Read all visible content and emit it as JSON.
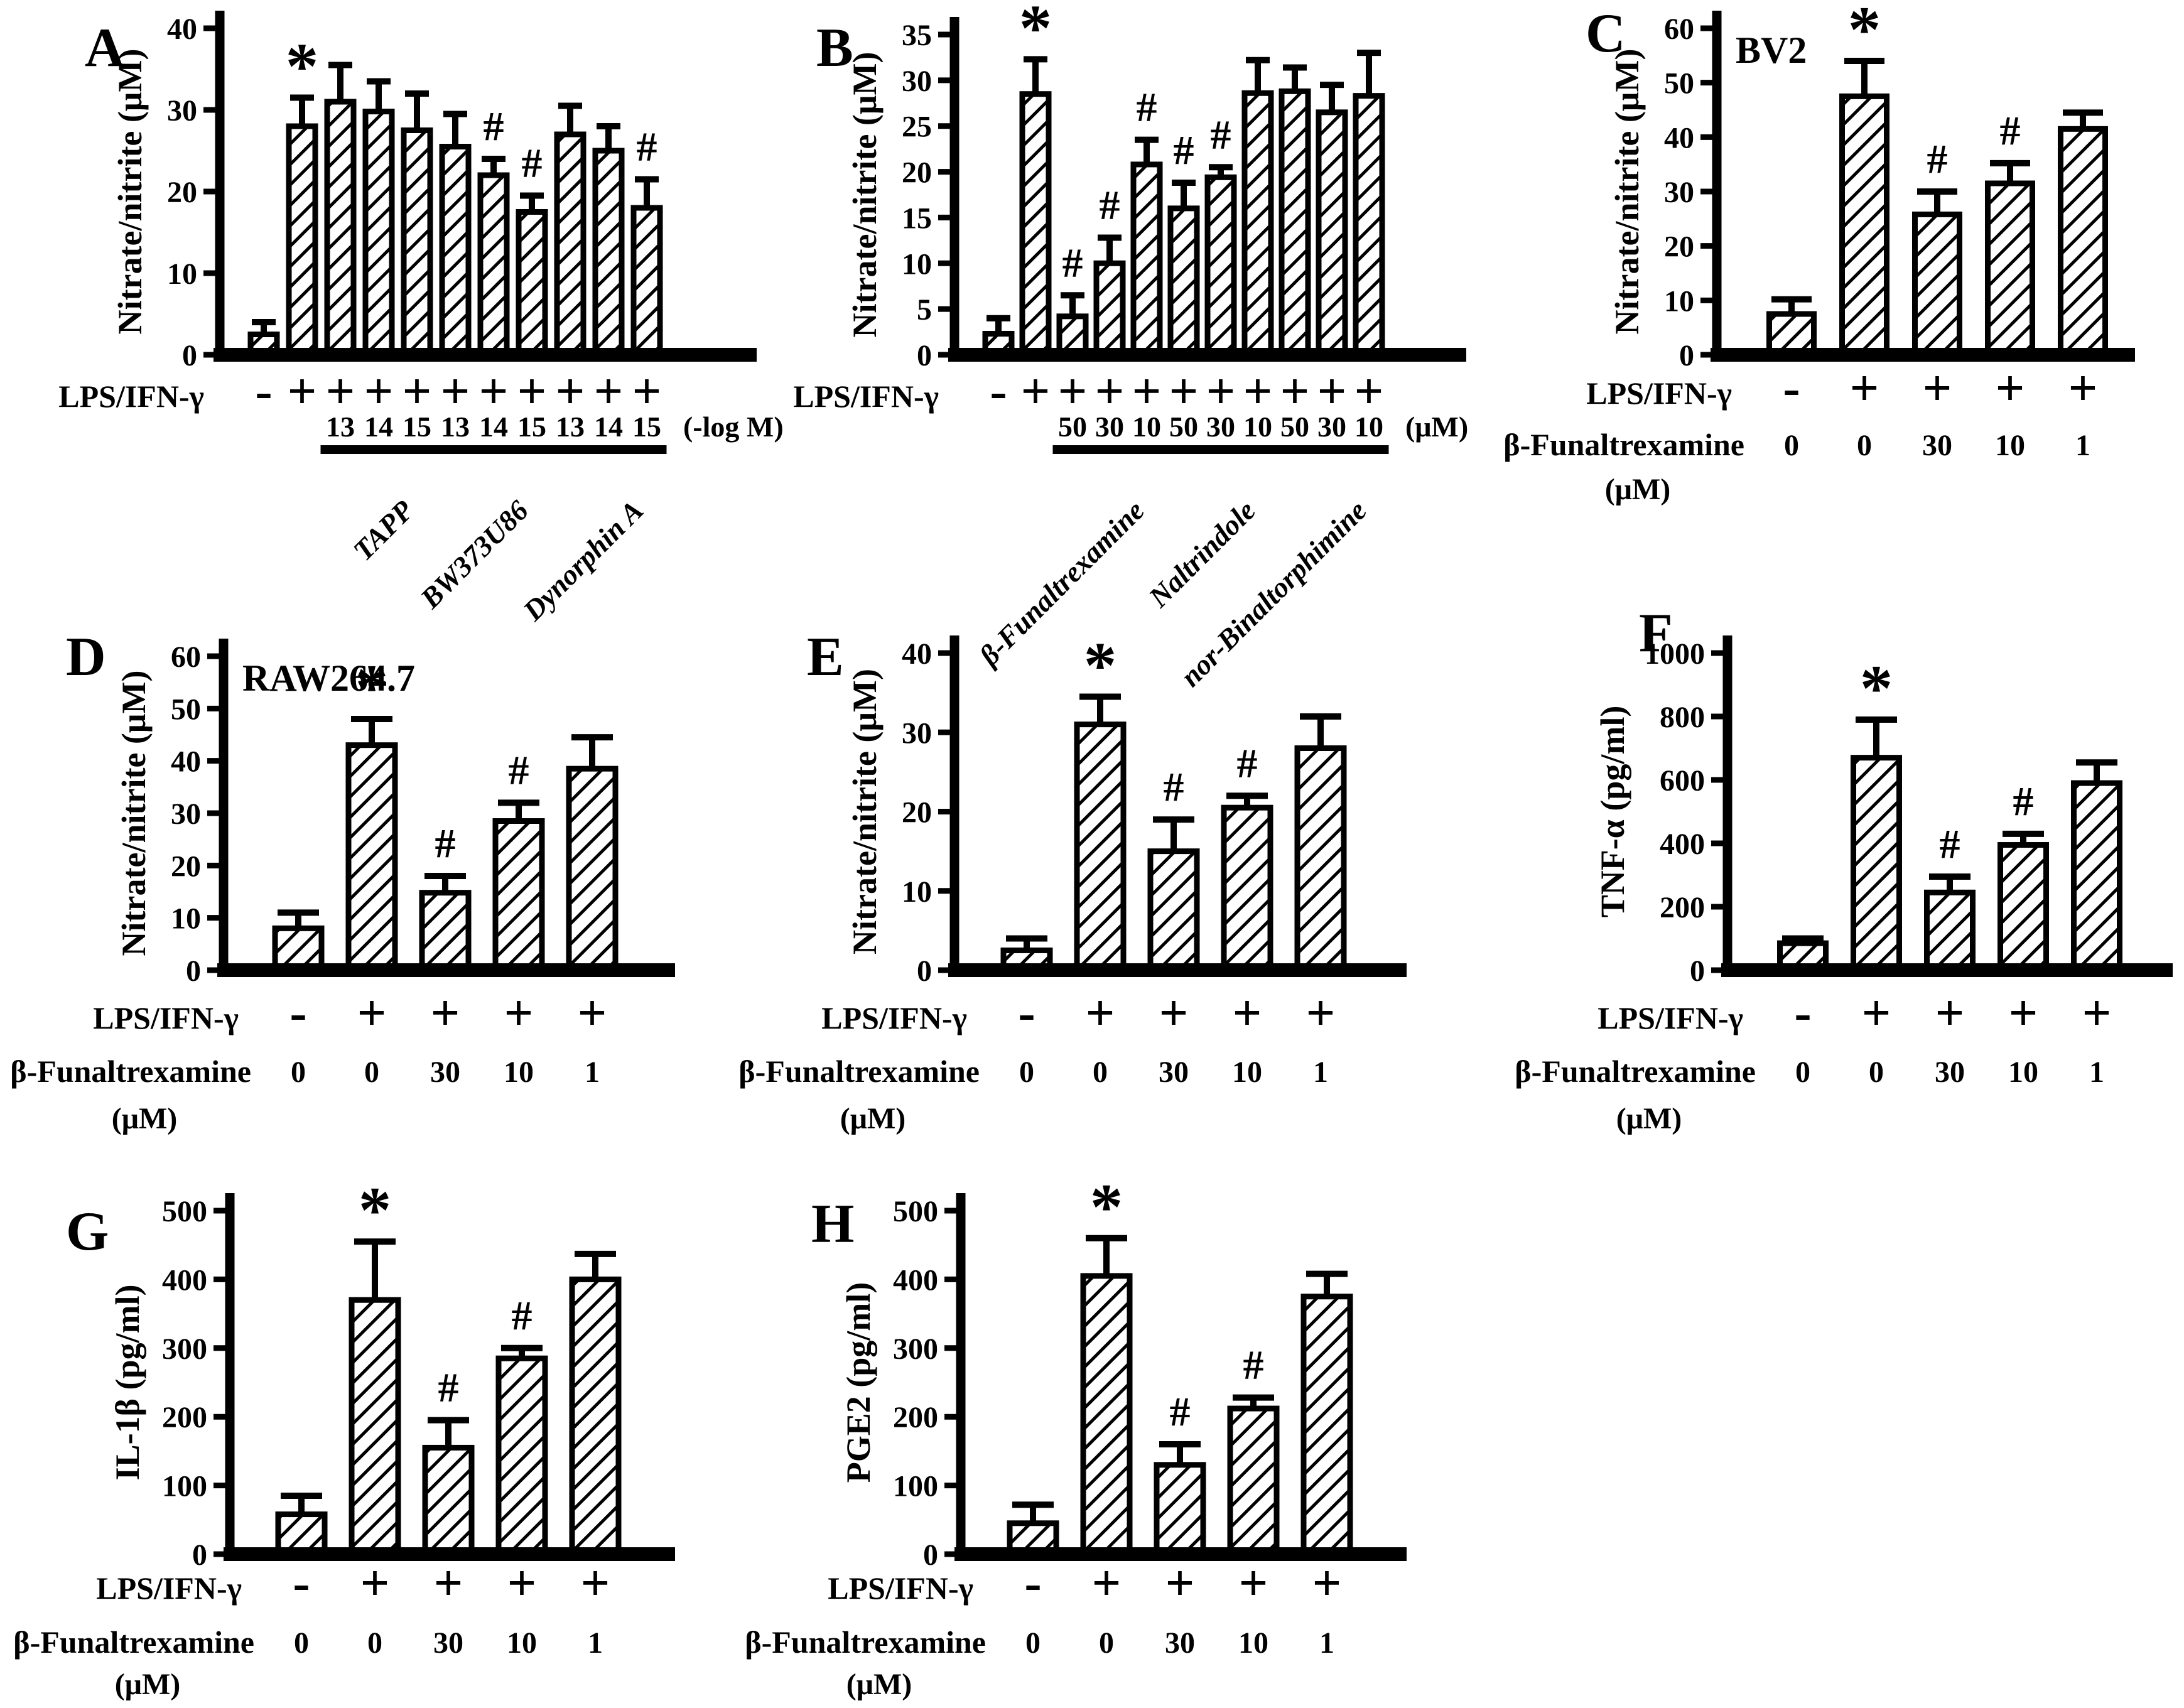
{
  "figure": {
    "background_color": "#ffffff",
    "ink_color": "#000000",
    "description": "Eight-panel bar figure (A-H) of opioid ligand effects on LPS/IFN-gamma induced inflammatory mediators"
  },
  "chart_data": [
    {
      "type": "bar",
      "panel": "A",
      "cell_line": "",
      "ylabel": "Nitrate/nitrite (μM)",
      "ylim": [
        0,
        40
      ],
      "yticks": [
        "0",
        "10",
        "20",
        "30",
        "40"
      ],
      "stim_label": "LPS/IFN-γ",
      "conc_unit": "(-log M)",
      "drug_label": "",
      "drug_unit": "",
      "grid": false,
      "legend": "none",
      "bars": [
        {
          "stim": "-",
          "conc": "",
          "value": 2.5,
          "err": 1.5,
          "sig": ""
        },
        {
          "stim": "+",
          "conc": "",
          "value": 28,
          "err": 3.5,
          "sig": "*"
        },
        {
          "stim": "+",
          "conc": "13",
          "value": 31,
          "err": 4.5,
          "sig": ""
        },
        {
          "stim": "+",
          "conc": "14",
          "value": 29.8,
          "err": 3.7,
          "sig": ""
        },
        {
          "stim": "+",
          "conc": "15",
          "value": 27.5,
          "err": 4.5,
          "sig": ""
        },
        {
          "stim": "+",
          "conc": "13",
          "value": 25.5,
          "err": 4,
          "sig": ""
        },
        {
          "stim": "+",
          "conc": "14",
          "value": 22,
          "err": 2,
          "sig": "#"
        },
        {
          "stim": "+",
          "conc": "15",
          "value": 17.5,
          "err": 2,
          "sig": "#"
        },
        {
          "stim": "+",
          "conc": "13",
          "value": 27,
          "err": 3.5,
          "sig": ""
        },
        {
          "stim": "+",
          "conc": "14",
          "value": 25,
          "err": 3,
          "sig": ""
        },
        {
          "stim": "+",
          "conc": "15",
          "value": 18,
          "err": 3.5,
          "sig": "#"
        }
      ],
      "groups": [
        {
          "label": "TAPP",
          "from": 2,
          "to": 4
        },
        {
          "label": "BW373U86",
          "from": 5,
          "to": 7
        },
        {
          "label": "Dynorphin A",
          "from": 8,
          "to": 10
        }
      ]
    },
    {
      "type": "bar",
      "panel": "B",
      "cell_line": "",
      "ylabel": "Nitrate/nitrite (μM)",
      "ylim": [
        0,
        35
      ],
      "yticks": [
        "0",
        "5",
        "10",
        "15",
        "20",
        "25",
        "30",
        "35"
      ],
      "stim_label": "LPS/IFN-γ",
      "conc_unit": "(μM)",
      "drug_label": "",
      "drug_unit": "",
      "grid": false,
      "legend": "none",
      "bars": [
        {
          "stim": "-",
          "conc": "",
          "value": 2.3,
          "err": 1.7,
          "sig": ""
        },
        {
          "stim": "+",
          "conc": "",
          "value": 28.5,
          "err": 3.8,
          "sig": "*"
        },
        {
          "stim": "+",
          "conc": "50",
          "value": 4.2,
          "err": 2.3,
          "sig": "#"
        },
        {
          "stim": "+",
          "conc": "30",
          "value": 10,
          "err": 2.8,
          "sig": "#"
        },
        {
          "stim": "+",
          "conc": "10",
          "value": 20.8,
          "err": 2.7,
          "sig": "#"
        },
        {
          "stim": "+",
          "conc": "50",
          "value": 16,
          "err": 2.8,
          "sig": "#"
        },
        {
          "stim": "+",
          "conc": "30",
          "value": 19.4,
          "err": 1.1,
          "sig": "#"
        },
        {
          "stim": "+",
          "conc": "10",
          "value": 28.6,
          "err": 3.6,
          "sig": ""
        },
        {
          "stim": "+",
          "conc": "50",
          "value": 28.8,
          "err": 2.6,
          "sig": ""
        },
        {
          "stim": "+",
          "conc": "30",
          "value": 26.5,
          "err": 3,
          "sig": ""
        },
        {
          "stim": "+",
          "conc": "10",
          "value": 28.3,
          "err": 4.7,
          "sig": ""
        }
      ],
      "groups": [
        {
          "label": "β-Funaltrexamine",
          "from": 2,
          "to": 4
        },
        {
          "label": "Naltrindole",
          "from": 5,
          "to": 7
        },
        {
          "label": "nor-Binaltorphimine",
          "from": 8,
          "to": 10
        }
      ]
    },
    {
      "type": "bar",
      "panel": "C",
      "cell_line": "BV2",
      "ylabel": "Nitrate/nitrite (μM)",
      "ylim": [
        0,
        60
      ],
      "yticks": [
        "0",
        "10",
        "20",
        "30",
        "40",
        "50",
        "60"
      ],
      "stim_label": "LPS/IFN-γ",
      "conc_unit": "",
      "drug_label": "β-Funaltrexamine",
      "drug_unit": "(μM)",
      "grid": false,
      "legend": "none",
      "bars": [
        {
          "stim": "-",
          "conc": "0",
          "value": 7.5,
          "err": 2.7,
          "sig": ""
        },
        {
          "stim": "+",
          "conc": "0",
          "value": 47.5,
          "err": 6.5,
          "sig": "*"
        },
        {
          "stim": "+",
          "conc": "30",
          "value": 25.8,
          "err": 4.2,
          "sig": "#"
        },
        {
          "stim": "+",
          "conc": "10",
          "value": 31.5,
          "err": 3.7,
          "sig": "#"
        },
        {
          "stim": "+",
          "conc": "1",
          "value": 41.5,
          "err": 3,
          "sig": ""
        }
      ],
      "groups": []
    },
    {
      "type": "bar",
      "panel": "D",
      "cell_line": "RAW264.7",
      "ylabel": "Nitrate/nitrite (μM)",
      "ylim": [
        0,
        60
      ],
      "yticks": [
        "0",
        "10",
        "20",
        "30",
        "40",
        "50",
        "60"
      ],
      "stim_label": "LPS/IFN-γ",
      "conc_unit": "",
      "drug_label": "β-Funaltrexamine",
      "drug_unit": "(μM)",
      "grid": false,
      "legend": "none",
      "bars": [
        {
          "stim": "-",
          "conc": "0",
          "value": 8,
          "err": 3,
          "sig": ""
        },
        {
          "stim": "+",
          "conc": "0",
          "value": 43,
          "err": 5,
          "sig": "*"
        },
        {
          "stim": "+",
          "conc": "30",
          "value": 14.8,
          "err": 3.2,
          "sig": "#"
        },
        {
          "stim": "+",
          "conc": "10",
          "value": 28.5,
          "err": 3.5,
          "sig": "#"
        },
        {
          "stim": "+",
          "conc": "1",
          "value": 38.5,
          "err": 6,
          "sig": ""
        }
      ],
      "groups": []
    },
    {
      "type": "bar",
      "panel": "E",
      "cell_line": "",
      "ylabel": "Nitrate/nitrite (μM)",
      "ylim": [
        0,
        40
      ],
      "yticks": [
        "0",
        "10",
        "20",
        "30",
        "40"
      ],
      "stim_label": "LPS/IFN-γ",
      "conc_unit": "",
      "drug_label": "β-Funaltrexamine",
      "drug_unit": "(μM)",
      "grid": false,
      "legend": "none",
      "bars": [
        {
          "stim": "-",
          "conc": "0",
          "value": 2.5,
          "err": 1.5,
          "sig": ""
        },
        {
          "stim": "+",
          "conc": "0",
          "value": 31,
          "err": 3.5,
          "sig": "*"
        },
        {
          "stim": "+",
          "conc": "30",
          "value": 15,
          "err": 4,
          "sig": "#"
        },
        {
          "stim": "+",
          "conc": "10",
          "value": 20.5,
          "err": 1.5,
          "sig": "#"
        },
        {
          "stim": "+",
          "conc": "1",
          "value": 28,
          "err": 4,
          "sig": ""
        }
      ],
      "groups": []
    },
    {
      "type": "bar",
      "panel": "F",
      "cell_line": "",
      "ylabel": "TNF-α (pg/ml)",
      "ylim": [
        0,
        1000
      ],
      "yticks": [
        "0",
        "200",
        "400",
        "600",
        "800",
        "1000"
      ],
      "stim_label": "LPS/IFN-γ",
      "conc_unit": "",
      "drug_label": "β-Funaltrexamine",
      "drug_unit": "(μM)",
      "grid": false,
      "legend": "none",
      "bars": [
        {
          "stim": "-",
          "conc": "0",
          "value": 85,
          "err": 15,
          "sig": ""
        },
        {
          "stim": "+",
          "conc": "0",
          "value": 670,
          "err": 120,
          "sig": "*"
        },
        {
          "stim": "+",
          "conc": "30",
          "value": 245,
          "err": 50,
          "sig": "#"
        },
        {
          "stim": "+",
          "conc": "10",
          "value": 395,
          "err": 35,
          "sig": "#"
        },
        {
          "stim": "+",
          "conc": "1",
          "value": 590,
          "err": 65,
          "sig": ""
        }
      ],
      "groups": []
    },
    {
      "type": "bar",
      "panel": "G",
      "cell_line": "",
      "ylabel": "IL-1β (pg/ml)",
      "ylim": [
        0,
        500
      ],
      "yticks": [
        "0",
        "100",
        "200",
        "300",
        "400",
        "500"
      ],
      "stim_label": "LPS/IFN-γ",
      "conc_unit": "",
      "drug_label": "β-Funaltrexamine",
      "drug_unit": "(μM)",
      "grid": false,
      "legend": "none",
      "bars": [
        {
          "stim": "-",
          "conc": "0",
          "value": 58,
          "err": 27,
          "sig": ""
        },
        {
          "stim": "+",
          "conc": "0",
          "value": 370,
          "err": 85,
          "sig": "*"
        },
        {
          "stim": "+",
          "conc": "30",
          "value": 155,
          "err": 40,
          "sig": "#"
        },
        {
          "stim": "+",
          "conc": "10",
          "value": 285,
          "err": 15,
          "sig": "#"
        },
        {
          "stim": "+",
          "conc": "1",
          "value": 400,
          "err": 37,
          "sig": ""
        }
      ],
      "groups": []
    },
    {
      "type": "bar",
      "panel": "H",
      "cell_line": "",
      "ylabel": "PGE2 (pg/ml)",
      "ylim": [
        0,
        500
      ],
      "yticks": [
        "0",
        "100",
        "200",
        "300",
        "400",
        "500"
      ],
      "stim_label": "LPS/IFN-γ",
      "conc_unit": "",
      "drug_label": "β-Funaltrexamine",
      "drug_unit": "(μM)",
      "grid": false,
      "legend": "none",
      "bars": [
        {
          "stim": "-",
          "conc": "0",
          "value": 45,
          "err": 27,
          "sig": ""
        },
        {
          "stim": "+",
          "conc": "0",
          "value": 405,
          "err": 55,
          "sig": "*"
        },
        {
          "stim": "+",
          "conc": "30",
          "value": 130,
          "err": 30,
          "sig": "#"
        },
        {
          "stim": "+",
          "conc": "10",
          "value": 212,
          "err": 16,
          "sig": "#"
        },
        {
          "stim": "+",
          "conc": "1",
          "value": 375,
          "err": 33,
          "sig": ""
        }
      ],
      "groups": []
    }
  ]
}
